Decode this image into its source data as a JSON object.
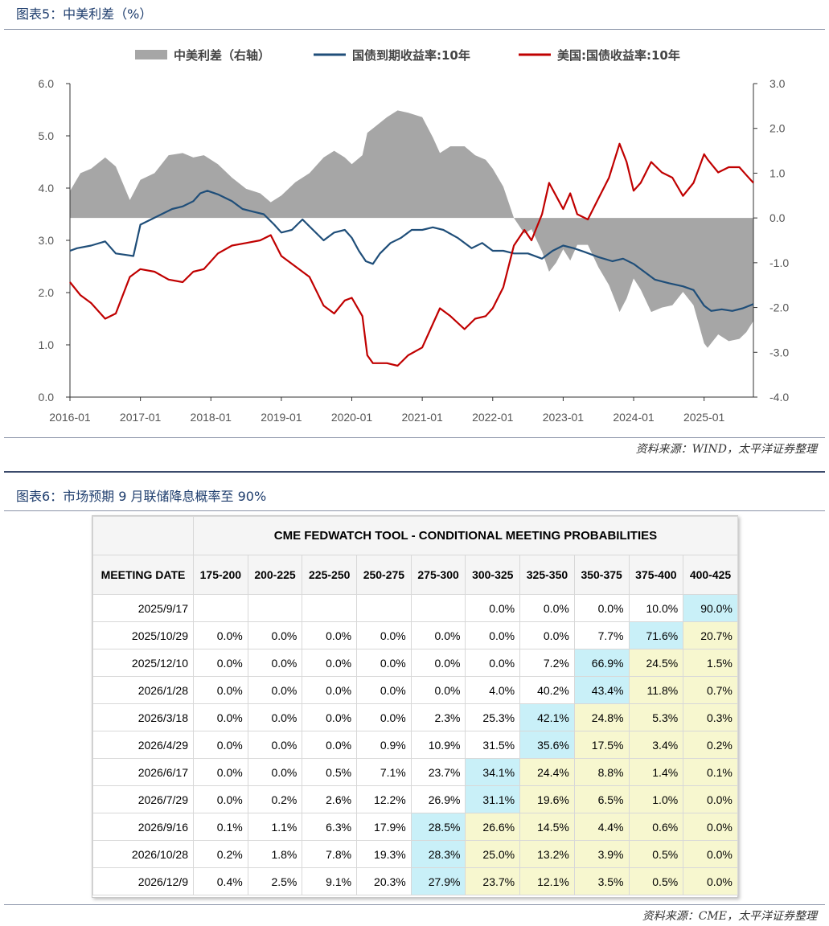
{
  "figure1": {
    "title": "图表5：中美利差（%）",
    "source": "资料来源：WIND，太平洋证券整理"
  },
  "figure2": {
    "title": "图表6：市场预期 9 月联储降息概率至 90%",
    "source": "资料来源：CME，太平洋证券整理"
  },
  "chart_data": {
    "type": "line",
    "legend": [
      "中美利差（右轴）",
      "国债到期收益率:10年",
      "美国:国债收益率:10年"
    ],
    "legend_position": "top",
    "x_ticks": [
      "2016-01",
      "2017-01",
      "2018-01",
      "2019-01",
      "2020-01",
      "2021-01",
      "2022-01",
      "2023-01",
      "2024-01",
      "2025-01"
    ],
    "ylim_left": [
      0,
      6
    ],
    "yticks_left": [
      "0.0",
      "1.0",
      "2.0",
      "3.0",
      "4.0",
      "5.0",
      "6.0"
    ],
    "ylim_right": [
      -4,
      3
    ],
    "yticks_right": [
      "-4.0",
      "-3.0",
      "-2.0",
      "-1.0",
      "0.0",
      "1.0",
      "2.0",
      "3.0"
    ],
    "x_range": [
      2016.0,
      2025.7
    ],
    "colors": {
      "spread": "#a6a6a6",
      "china": "#1f4e79",
      "us": "#c00000",
      "axis": "#333333"
    },
    "series": [
      {
        "name": "国债到期收益率:10年",
        "axis": "left",
        "x": [
          2016.0,
          2016.1,
          2016.3,
          2016.5,
          2016.65,
          2016.8,
          2016.9,
          2017.0,
          2017.15,
          2017.3,
          2017.45,
          2017.6,
          2017.75,
          2017.85,
          2017.95,
          2018.1,
          2018.3,
          2018.45,
          2018.6,
          2018.75,
          2018.9,
          2019.0,
          2019.15,
          2019.3,
          2019.45,
          2019.6,
          2019.75,
          2019.9,
          2020.0,
          2020.1,
          2020.2,
          2020.3,
          2020.4,
          2020.55,
          2020.7,
          2020.85,
          2021.0,
          2021.15,
          2021.3,
          2021.5,
          2021.7,
          2021.85,
          2022.0,
          2022.15,
          2022.3,
          2022.5,
          2022.7,
          2022.85,
          2023.0,
          2023.15,
          2023.3,
          2023.5,
          2023.7,
          2023.85,
          2024.0,
          2024.15,
          2024.3,
          2024.5,
          2024.7,
          2024.85,
          2025.0,
          2025.1,
          2025.25,
          2025.4,
          2025.55,
          2025.7
        ],
        "y": [
          2.8,
          2.85,
          2.9,
          2.98,
          2.75,
          2.72,
          2.7,
          3.3,
          3.4,
          3.5,
          3.6,
          3.65,
          3.75,
          3.9,
          3.95,
          3.88,
          3.75,
          3.6,
          3.55,
          3.5,
          3.3,
          3.15,
          3.2,
          3.4,
          3.2,
          3.0,
          3.15,
          3.2,
          3.05,
          2.8,
          2.6,
          2.55,
          2.75,
          2.95,
          3.05,
          3.2,
          3.2,
          3.25,
          3.2,
          3.05,
          2.85,
          2.95,
          2.8,
          2.8,
          2.75,
          2.75,
          2.65,
          2.8,
          2.9,
          2.85,
          2.78,
          2.68,
          2.6,
          2.65,
          2.55,
          2.4,
          2.25,
          2.18,
          2.12,
          2.05,
          1.75,
          1.65,
          1.68,
          1.65,
          1.7,
          1.78
        ]
      },
      {
        "name": "美国:国债收益率:10年",
        "axis": "left",
        "x": [
          2016.0,
          2016.15,
          2016.3,
          2016.5,
          2016.65,
          2016.85,
          2017.0,
          2017.2,
          2017.4,
          2017.6,
          2017.75,
          2017.9,
          2018.1,
          2018.3,
          2018.5,
          2018.7,
          2018.85,
          2019.0,
          2019.2,
          2019.4,
          2019.6,
          2019.75,
          2019.9,
          2020.0,
          2020.15,
          2020.22,
          2020.3,
          2020.5,
          2020.65,
          2020.8,
          2021.0,
          2021.15,
          2021.25,
          2021.4,
          2021.6,
          2021.75,
          2021.9,
          2022.0,
          2022.15,
          2022.3,
          2022.45,
          2022.55,
          2022.7,
          2022.8,
          2022.9,
          2023.0,
          2023.1,
          2023.2,
          2023.35,
          2023.5,
          2023.65,
          2023.8,
          2023.9,
          2024.0,
          2024.1,
          2024.25,
          2024.4,
          2024.55,
          2024.7,
          2024.85,
          2025.0,
          2025.05,
          2025.2,
          2025.35,
          2025.5,
          2025.6,
          2025.7
        ],
        "y": [
          2.2,
          1.95,
          1.8,
          1.5,
          1.6,
          2.3,
          2.45,
          2.4,
          2.25,
          2.2,
          2.4,
          2.45,
          2.75,
          2.9,
          2.95,
          3.0,
          3.1,
          2.7,
          2.5,
          2.3,
          1.75,
          1.6,
          1.85,
          1.9,
          1.55,
          0.8,
          0.65,
          0.65,
          0.6,
          0.8,
          0.95,
          1.4,
          1.7,
          1.55,
          1.3,
          1.5,
          1.55,
          1.7,
          2.1,
          2.9,
          3.2,
          3.0,
          3.5,
          4.1,
          3.85,
          3.6,
          3.9,
          3.5,
          3.4,
          3.8,
          4.2,
          4.85,
          4.5,
          3.95,
          4.1,
          4.5,
          4.3,
          4.2,
          3.85,
          4.1,
          4.65,
          4.55,
          4.3,
          4.4,
          4.4,
          4.25,
          4.1
        ]
      },
      {
        "name": "中美利差（右轴）",
        "axis": "right",
        "x": [
          2016.0,
          2016.15,
          2016.3,
          2016.5,
          2016.65,
          2016.85,
          2017.0,
          2017.2,
          2017.4,
          2017.6,
          2017.75,
          2017.9,
          2018.1,
          2018.3,
          2018.5,
          2018.7,
          2018.85,
          2019.0,
          2019.2,
          2019.4,
          2019.6,
          2019.75,
          2019.9,
          2020.0,
          2020.15,
          2020.22,
          2020.3,
          2020.5,
          2020.65,
          2020.8,
          2021.0,
          2021.15,
          2021.25,
          2021.4,
          2021.6,
          2021.75,
          2021.9,
          2022.0,
          2022.15,
          2022.3,
          2022.45,
          2022.55,
          2022.7,
          2022.8,
          2022.9,
          2023.0,
          2023.1,
          2023.2,
          2023.35,
          2023.5,
          2023.65,
          2023.8,
          2023.9,
          2024.0,
          2024.1,
          2024.25,
          2024.4,
          2024.55,
          2024.7,
          2024.85,
          2025.0,
          2025.05,
          2025.2,
          2025.35,
          2025.5,
          2025.6,
          2025.7
        ],
        "y": [
          0.6,
          1.0,
          1.1,
          1.35,
          1.15,
          0.4,
          0.85,
          1.0,
          1.4,
          1.45,
          1.35,
          1.4,
          1.2,
          0.9,
          0.65,
          0.55,
          0.35,
          0.5,
          0.8,
          1.0,
          1.35,
          1.5,
          1.35,
          1.2,
          1.4,
          1.9,
          2.0,
          2.25,
          2.4,
          2.35,
          2.25,
          1.8,
          1.45,
          1.6,
          1.6,
          1.4,
          1.3,
          1.1,
          0.7,
          0.0,
          -0.35,
          -0.25,
          -0.75,
          -1.2,
          -1.0,
          -0.7,
          -0.95,
          -0.6,
          -0.6,
          -1.1,
          -1.5,
          -2.1,
          -1.8,
          -1.35,
          -1.6,
          -2.1,
          -2.0,
          -1.95,
          -1.65,
          -1.95,
          -2.8,
          -2.9,
          -2.6,
          -2.75,
          -2.7,
          -2.55,
          -2.3
        ]
      }
    ]
  },
  "table": {
    "title": "CME FEDWATCH TOOL - CONDITIONAL MEETING PROBABILITIES",
    "headers": [
      "MEETING DATE",
      "175-200",
      "200-225",
      "225-250",
      "250-275",
      "275-300",
      "300-325",
      "325-350",
      "350-375",
      "375-400",
      "400-425"
    ],
    "rows": [
      [
        "2025/9/17",
        "",
        "",
        "",
        "",
        "",
        "0.0%",
        "0.0%",
        "0.0%",
        "10.0%",
        "90.0%"
      ],
      [
        "2025/10/29",
        "0.0%",
        "0.0%",
        "0.0%",
        "0.0%",
        "0.0%",
        "0.0%",
        "0.0%",
        "7.7%",
        "71.6%",
        "20.7%"
      ],
      [
        "2025/12/10",
        "0.0%",
        "0.0%",
        "0.0%",
        "0.0%",
        "0.0%",
        "0.0%",
        "7.2%",
        "66.9%",
        "24.5%",
        "1.5%"
      ],
      [
        "2026/1/28",
        "0.0%",
        "0.0%",
        "0.0%",
        "0.0%",
        "0.0%",
        "4.0%",
        "40.2%",
        "43.4%",
        "11.8%",
        "0.7%"
      ],
      [
        "2026/3/18",
        "0.0%",
        "0.0%",
        "0.0%",
        "0.0%",
        "2.3%",
        "25.3%",
        "42.1%",
        "24.8%",
        "5.3%",
        "0.3%"
      ],
      [
        "2026/4/29",
        "0.0%",
        "0.0%",
        "0.0%",
        "0.9%",
        "10.9%",
        "31.5%",
        "35.6%",
        "17.5%",
        "3.4%",
        "0.2%"
      ],
      [
        "2026/6/17",
        "0.0%",
        "0.0%",
        "0.5%",
        "7.1%",
        "23.7%",
        "34.1%",
        "24.4%",
        "8.8%",
        "1.4%",
        "0.1%"
      ],
      [
        "2026/7/29",
        "0.0%",
        "0.2%",
        "2.6%",
        "12.2%",
        "26.9%",
        "31.1%",
        "19.6%",
        "6.5%",
        "1.0%",
        "0.0%"
      ],
      [
        "2026/9/16",
        "0.1%",
        "1.1%",
        "6.3%",
        "17.9%",
        "28.5%",
        "26.6%",
        "14.5%",
        "4.4%",
        "0.6%",
        "0.0%"
      ],
      [
        "2026/10/28",
        "0.2%",
        "1.8%",
        "7.8%",
        "19.3%",
        "28.3%",
        "25.0%",
        "13.2%",
        "3.9%",
        "0.5%",
        "0.0%"
      ],
      [
        "2026/12/9",
        "0.4%",
        "2.5%",
        "9.1%",
        "20.3%",
        "27.9%",
        "23.7%",
        "12.1%",
        "3.5%",
        "0.5%",
        "0.0%"
      ]
    ],
    "highlight_cyan": [
      [
        0,
        10
      ],
      [
        1,
        9
      ],
      [
        2,
        8
      ],
      [
        3,
        8
      ],
      [
        4,
        7
      ],
      [
        5,
        7
      ],
      [
        6,
        6
      ],
      [
        7,
        6
      ],
      [
        8,
        5
      ],
      [
        9,
        5
      ],
      [
        10,
        5
      ]
    ]
  }
}
